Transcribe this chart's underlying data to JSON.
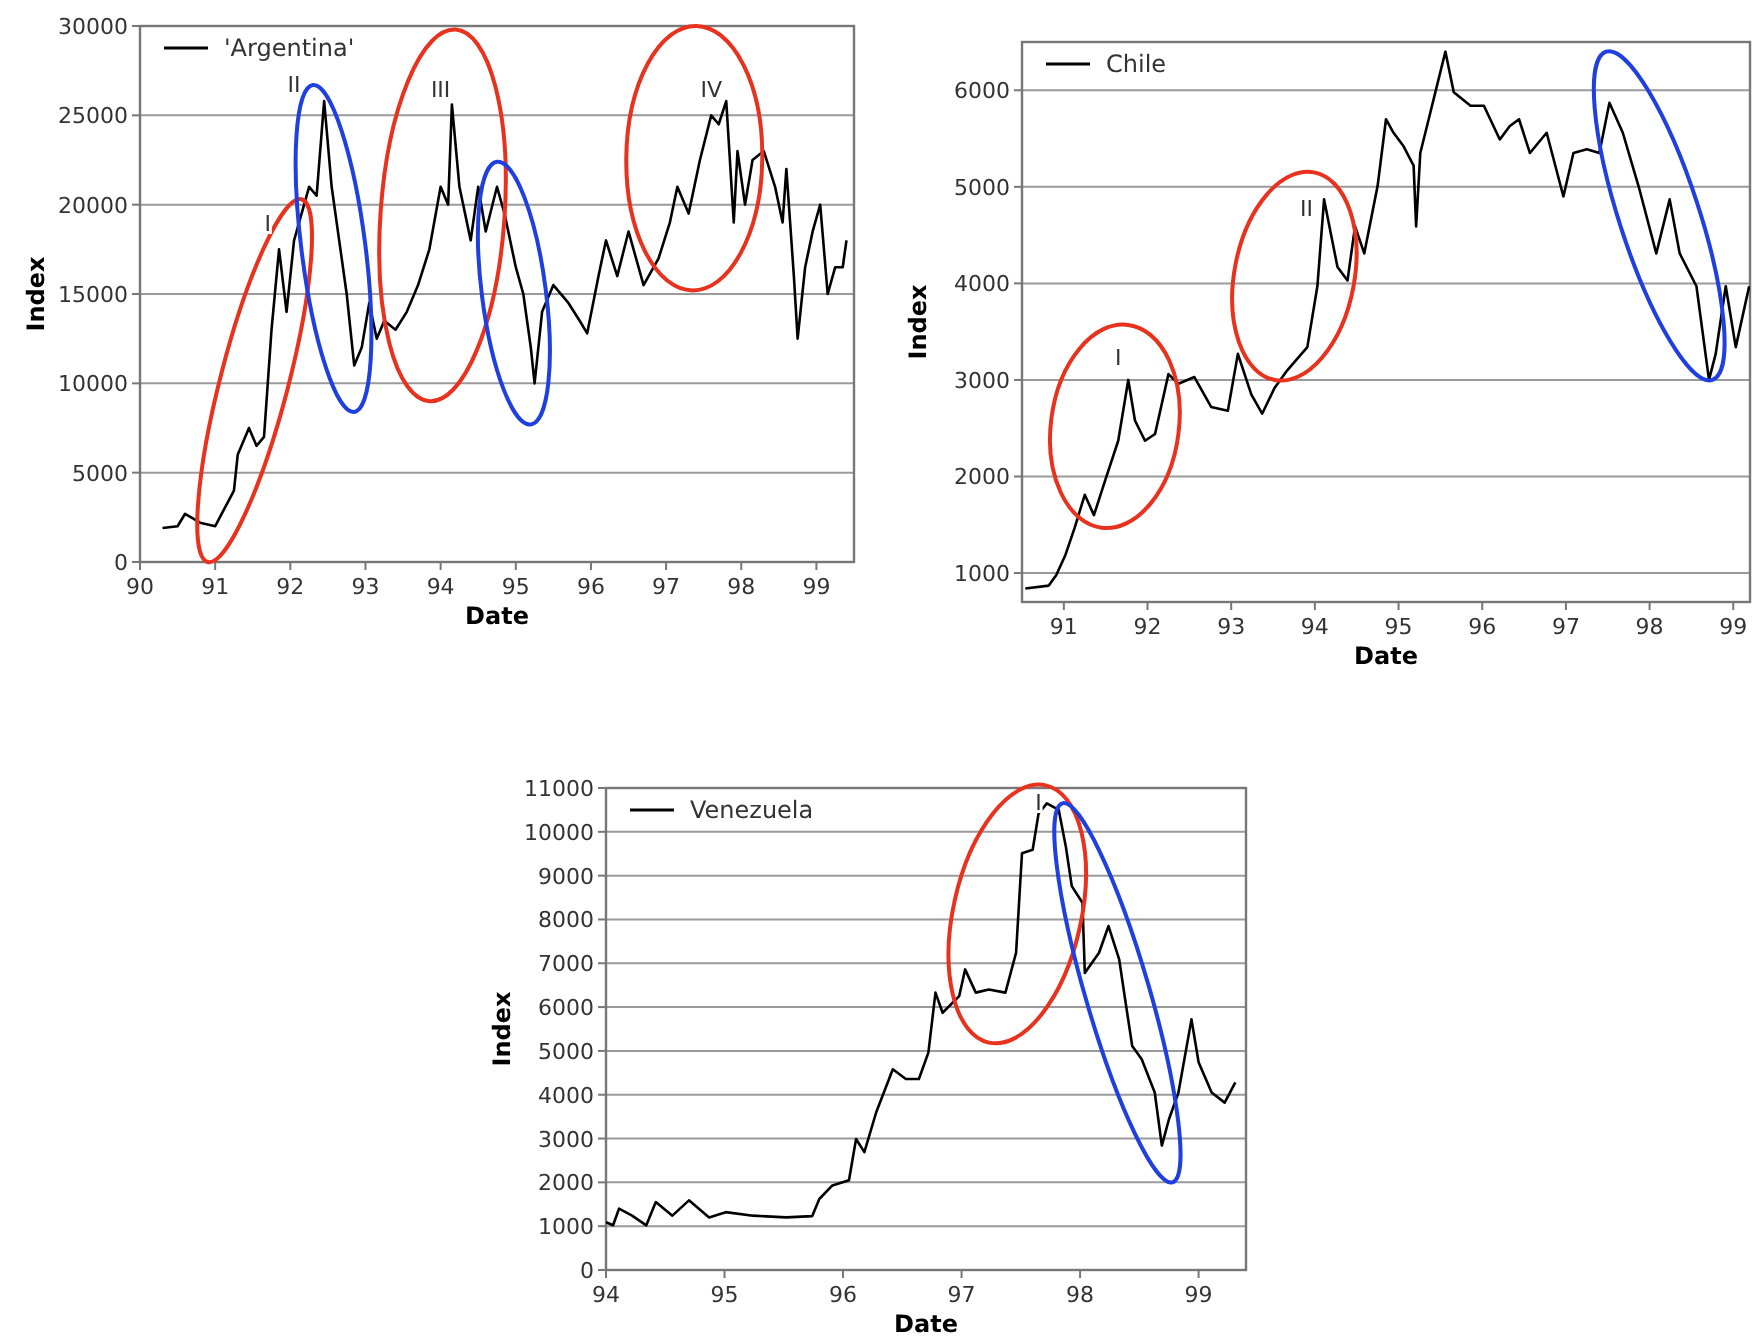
{
  "chart_data": [
    {
      "type": "line",
      "xlabel": "Date",
      "ylabel": "Index",
      "xlim": [
        90,
        99.5
      ],
      "xticks": [
        90,
        91,
        92,
        93,
        94,
        95,
        96,
        97,
        98,
        99
      ],
      "ylim": [
        0,
        30000
      ],
      "yticks": [
        0,
        5000,
        10000,
        15000,
        20000,
        25000,
        30000
      ],
      "grid": "y",
      "legend": "top left",
      "annotations": [
        "I",
        "II",
        "III",
        "IV"
      ],
      "series": [
        {
          "name": "'Argentina'",
          "color": "#000000",
          "x": [
            90.3,
            90.5,
            90.6,
            90.8,
            91.0,
            91.1,
            91.25,
            91.3,
            91.45,
            91.55,
            91.65,
            91.75,
            91.85,
            91.95,
            92.05,
            92.15,
            92.25,
            92.35,
            92.45,
            92.55,
            92.65,
            92.75,
            92.85,
            92.95,
            93.05,
            93.15,
            93.25,
            93.4,
            93.55,
            93.7,
            93.85,
            94.0,
            94.1,
            94.15,
            94.25,
            94.4,
            94.5,
            94.6,
            94.75,
            94.85,
            95.0,
            95.1,
            95.2,
            95.25,
            95.35,
            95.5,
            95.7,
            95.85,
            95.95,
            96.1,
            96.2,
            96.35,
            96.5,
            96.7,
            96.9,
            97.05,
            97.15,
            97.3,
            97.45,
            97.6,
            97.7,
            97.8,
            97.9,
            97.95,
            98.05,
            98.15,
            98.3,
            98.45,
            98.55,
            98.6,
            98.7,
            98.75,
            98.85,
            98.95,
            99.05,
            99.15,
            99.25,
            99.35,
            99.4
          ],
          "values": [
            1900,
            2000,
            2700,
            2200,
            2000,
            2800,
            4000,
            6000,
            7500,
            6500,
            7000,
            13000,
            17500,
            14000,
            18000,
            19500,
            21000,
            20500,
            25800,
            21000,
            18000,
            15000,
            11000,
            12000,
            14500,
            12500,
            13500,
            13000,
            14000,
            15500,
            17500,
            21000,
            20000,
            25600,
            21000,
            18000,
            21000,
            18500,
            21000,
            19500,
            16500,
            15000,
            12000,
            10000,
            14000,
            15500,
            14500,
            13500,
            12800,
            16000,
            18000,
            16000,
            18500,
            15500,
            17000,
            19000,
            21000,
            19500,
            22500,
            25000,
            24500,
            25800,
            19000,
            23000,
            20000,
            22500,
            23000,
            21000,
            19000,
            22000,
            16000,
            12500,
            16500,
            18500,
            20000,
            15000,
            16500,
            16500,
            18000
          ]
        }
      ]
    },
    {
      "type": "line",
      "xlabel": "Date",
      "ylabel": "Index",
      "xlim": [
        90.5,
        99.2
      ],
      "xticks": [
        91,
        92,
        93,
        94,
        95,
        96,
        97,
        98,
        99
      ],
      "ylim": [
        700,
        6500
      ],
      "yticks": [
        1000,
        2000,
        3000,
        4000,
        5000,
        6000
      ],
      "grid": "y",
      "legend": "top left",
      "annotations": [
        "I",
        "II"
      ],
      "series": [
        {
          "name": "Chile",
          "color": "#000000",
          "x": [
            90.54,
            90.82,
            90.91,
            91.02,
            91.13,
            91.25,
            91.36,
            91.49,
            91.65,
            91.77,
            91.85,
            91.97,
            92.09,
            92.25,
            92.37,
            92.56,
            92.76,
            92.96,
            93.08,
            93.24,
            93.37,
            93.52,
            93.67,
            93.91,
            94.03,
            94.11,
            94.27,
            94.39,
            94.48,
            94.59,
            94.75,
            94.85,
            94.94,
            95.06,
            95.18,
            95.21,
            95.26,
            95.38,
            95.5,
            95.56,
            95.66,
            95.86,
            96.02,
            96.21,
            96.33,
            96.44,
            96.57,
            96.77,
            96.97,
            97.09,
            97.25,
            97.4,
            97.52,
            97.68,
            97.88,
            98.08,
            98.24,
            98.36,
            98.56,
            98.71,
            98.79,
            98.91,
            99.03,
            99.19
          ],
          "values": [
            840,
            870,
            980,
            1190,
            1470,
            1810,
            1600,
            1950,
            2370,
            3000,
            2580,
            2370,
            2440,
            3060,
            2960,
            3030,
            2720,
            2680,
            3270,
            2850,
            2650,
            2920,
            3100,
            3340,
            3970,
            4870,
            4170,
            4030,
            4590,
            4310,
            5010,
            5700,
            5560,
            5420,
            5220,
            4590,
            5350,
            5770,
            6190,
            6400,
            5980,
            5840,
            5840,
            5490,
            5630,
            5700,
            5350,
            5560,
            4900,
            5350,
            5390,
            5350,
            5870,
            5560,
            4970,
            4310,
            4870,
            4310,
            3970,
            3000,
            3270,
            3970,
            3340,
            3970
          ]
        }
      ]
    },
    {
      "type": "line",
      "xlabel": "Date",
      "ylabel": "Index",
      "xlim": [
        94,
        99.4
      ],
      "xticks": [
        94,
        95,
        96,
        97,
        98,
        99
      ],
      "ylim": [
        0,
        11000
      ],
      "yticks": [
        0,
        1000,
        2000,
        3000,
        4000,
        5000,
        6000,
        7000,
        8000,
        9000,
        10000,
        11000
      ],
      "grid": "y",
      "legend": "top left",
      "annotations": [
        "I"
      ],
      "series": [
        {
          "name": "Venezuela",
          "color": "#000000",
          "x": [
            94.0,
            94.06,
            94.11,
            94.22,
            94.34,
            94.42,
            94.56,
            94.7,
            94.87,
            95.01,
            95.24,
            95.52,
            95.74,
            95.8,
            95.91,
            96.05,
            96.11,
            96.18,
            96.28,
            96.42,
            96.53,
            96.64,
            96.72,
            96.78,
            96.84,
            96.98,
            97.03,
            97.12,
            97.23,
            97.37,
            97.46,
            97.51,
            97.6,
            97.65,
            97.72,
            97.82,
            97.88,
            97.93,
            98.02,
            98.04,
            98.16,
            98.24,
            98.33,
            98.38,
            98.44,
            98.52,
            98.63,
            98.69,
            98.75,
            98.83,
            98.94,
            99.0,
            99.11,
            99.22,
            99.31
          ],
          "values": [
            1090,
            1020,
            1400,
            1240,
            1020,
            1550,
            1240,
            1590,
            1200,
            1320,
            1240,
            1200,
            1230,
            1620,
            1930,
            2050,
            2990,
            2690,
            3600,
            4580,
            4360,
            4360,
            4960,
            6330,
            5870,
            6250,
            6860,
            6330,
            6400,
            6330,
            7240,
            9510,
            9590,
            10420,
            10650,
            10500,
            9660,
            8760,
            8380,
            6780,
            7240,
            7850,
            7090,
            6180,
            5110,
            4810,
            4050,
            2840,
            3440,
            4050,
            5720,
            4740,
            4050,
            3820,
            4280
          ]
        }
      ]
    }
  ]
}
